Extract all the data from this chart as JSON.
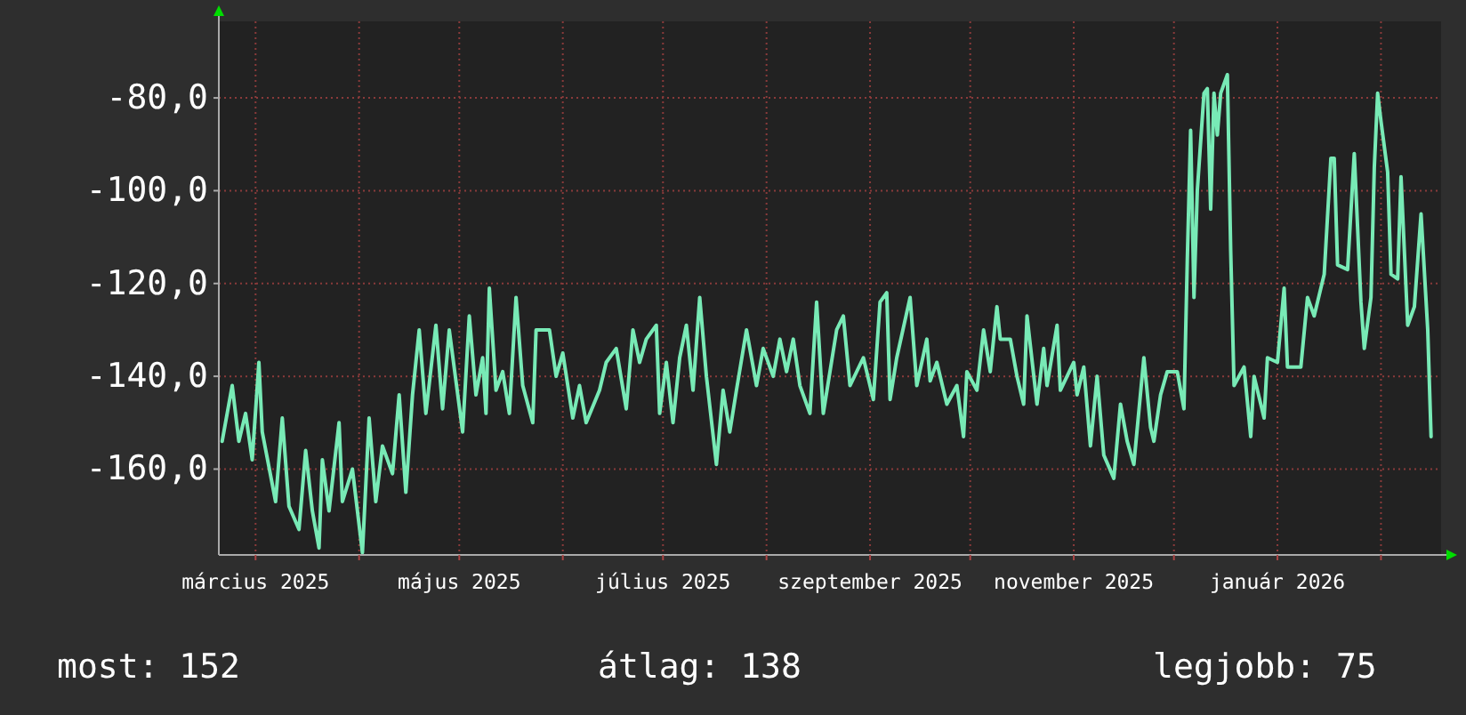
{
  "chart_data": {
    "type": "line",
    "xlim": [
      "2025-02-18",
      "2026-02-19"
    ],
    "xticks": [
      {
        "value": "2025-03-01",
        "label": "március 2025"
      },
      {
        "value": "2025-04-01",
        "label": null
      },
      {
        "value": "2025-05-01",
        "label": "május 2025"
      },
      {
        "value": "2025-06-01",
        "label": null
      },
      {
        "value": "2025-07-01",
        "label": "július 2025"
      },
      {
        "value": "2025-08-01",
        "label": null
      },
      {
        "value": "2025-09-01",
        "label": "szeptember 2025"
      },
      {
        "value": "2025-10-01",
        "label": null
      },
      {
        "value": "2025-11-01",
        "label": "november 2025"
      },
      {
        "value": "2025-12-01",
        "label": null
      },
      {
        "value": "2026-01-01",
        "label": "január 2026"
      },
      {
        "value": "2026-02-01",
        "label": null
      }
    ],
    "ylim": [
      -178.5,
      -63.5
    ],
    "yticks": [
      {
        "value": -160,
        "label": "-160,0"
      },
      {
        "value": -140,
        "label": "-140,0"
      },
      {
        "value": -120,
        "label": "-120,0"
      },
      {
        "value": -100,
        "label": "-100,0"
      },
      {
        "value": -80,
        "label": "-80,0"
      }
    ],
    "grid": true,
    "marker": "none",
    "line_style": "solid",
    "annotations": [
      "most: 152",
      "átlag: 138",
      "legjobb: 75"
    ],
    "series": [
      {
        "color": "#78eab6",
        "x": [
          "2025-02-19",
          "2025-02-22",
          "2025-02-24",
          "2025-02-26",
          "2025-02-28",
          "2025-03-02",
          "2025-03-03",
          "2025-03-07",
          "2025-03-09",
          "2025-03-11",
          "2025-03-14",
          "2025-03-16",
          "2025-03-18",
          "2025-03-20",
          "2025-03-21",
          "2025-03-23",
          "2025-03-26",
          "2025-03-27",
          "2025-03-30",
          "2025-03-31",
          "2025-04-02",
          "2025-04-04",
          "2025-04-06",
          "2025-04-08",
          "2025-04-11",
          "2025-04-13",
          "2025-04-15",
          "2025-04-17",
          "2025-04-19",
          "2025-04-21",
          "2025-04-24",
          "2025-04-26",
          "2025-04-28",
          "2025-05-02",
          "2025-05-04",
          "2025-05-06",
          "2025-05-08",
          "2025-05-09",
          "2025-05-10",
          "2025-05-12",
          "2025-05-14",
          "2025-05-16",
          "2025-05-18",
          "2025-05-20",
          "2025-05-23",
          "2025-05-24",
          "2025-05-28",
          "2025-05-30",
          "2025-06-01",
          "2025-06-04",
          "2025-06-06",
          "2025-06-08",
          "2025-06-12",
          "2025-06-14",
          "2025-06-17",
          "2025-06-20",
          "2025-06-22",
          "2025-06-24",
          "2025-06-26",
          "2025-06-29",
          "2025-06-30",
          "2025-07-02",
          "2025-07-04",
          "2025-07-06",
          "2025-07-08",
          "2025-07-10",
          "2025-07-12",
          "2025-07-14",
          "2025-07-17",
          "2025-07-19",
          "2025-07-21",
          "2025-07-23",
          "2025-07-26",
          "2025-07-29",
          "2025-07-31",
          "2025-08-03",
          "2025-08-05",
          "2025-08-07",
          "2025-08-09",
          "2025-08-11",
          "2025-08-14",
          "2025-08-16",
          "2025-08-18",
          "2025-08-22",
          "2025-08-24",
          "2025-08-26",
          "2025-08-30",
          "2025-09-02",
          "2025-09-04",
          "2025-09-06",
          "2025-09-07",
          "2025-09-09",
          "2025-09-13",
          "2025-09-15",
          "2025-09-18",
          "2025-09-19",
          "2025-09-21",
          "2025-09-24",
          "2025-09-27",
          "2025-09-29",
          "2025-09-30",
          "2025-10-03",
          "2025-10-05",
          "2025-10-07",
          "2025-10-09",
          "2025-10-10",
          "2025-10-13",
          "2025-10-15",
          "2025-10-17",
          "2025-10-18",
          "2025-10-21",
          "2025-10-23",
          "2025-10-24",
          "2025-10-27",
          "2025-10-28",
          "2025-11-01",
          "2025-11-02",
          "2025-11-04",
          "2025-11-06",
          "2025-11-08",
          "2025-11-10",
          "2025-11-13",
          "2025-11-15",
          "2025-11-17",
          "2025-11-19",
          "2025-11-22",
          "2025-11-24",
          "2025-11-25",
          "2025-11-27",
          "2025-11-29",
          "2025-12-02",
          "2025-12-04",
          "2025-12-05",
          "2025-12-06",
          "2025-12-07",
          "2025-12-08",
          "2025-12-10",
          "2025-12-11",
          "2025-12-12",
          "2025-12-13",
          "2025-12-14",
          "2025-12-15",
          "2025-12-17",
          "2025-12-18",
          "2025-12-19",
          "2025-12-22",
          "2025-12-24",
          "2025-12-25",
          "2025-12-28",
          "2025-12-29",
          "2026-01-01",
          "2026-01-03",
          "2026-01-04",
          "2026-01-08",
          "2026-01-10",
          "2026-01-12",
          "2026-01-15",
          "2026-01-17",
          "2026-01-18",
          "2026-01-19",
          "2026-01-22",
          "2026-01-24",
          "2026-01-26",
          "2026-01-27",
          "2026-01-29",
          "2026-01-30",
          "2026-01-31",
          "2026-02-01",
          "2026-02-03",
          "2026-02-04",
          "2026-02-06",
          "2026-02-07",
          "2026-02-09",
          "2026-02-11",
          "2026-02-13",
          "2026-02-15",
          "2026-02-16"
        ],
        "values": [
          -154,
          -142,
          -154,
          -148,
          -158,
          -137,
          -152,
          -167,
          -149,
          -168,
          -173,
          -156,
          -169,
          -177,
          -158,
          -169,
          -150,
          -167,
          -160,
          -166,
          -178,
          -149,
          -167,
          -155,
          -161,
          -144,
          -165,
          -144,
          -130,
          -148,
          -129,
          -147,
          -130,
          -152,
          -127,
          -144,
          -136,
          -148,
          -121,
          -143,
          -139,
          -148,
          -123,
          -142,
          -150,
          -130,
          -130,
          -140,
          -135,
          -149,
          -142,
          -150,
          -143,
          -137,
          -134,
          -147,
          -130,
          -137,
          -132,
          -129,
          -148,
          -137,
          -150,
          -136,
          -129,
          -143,
          -123,
          -140,
          -159,
          -143,
          -152,
          -143,
          -130,
          -142,
          -134,
          -140,
          -132,
          -139,
          -132,
          -142,
          -148,
          -124,
          -148,
          -130,
          -127,
          -142,
          -136,
          -145,
          -124,
          -122,
          -145,
          -136,
          -123,
          -142,
          -132,
          -141,
          -137,
          -146,
          -142,
          -153,
          -139,
          -143,
          -130,
          -139,
          -125,
          -132,
          -132,
          -140,
          -146,
          -127,
          -146,
          -134,
          -142,
          -129,
          -143,
          -137,
          -144,
          -138,
          -155,
          -140,
          -157,
          -162,
          -146,
          -154,
          -159,
          -136,
          -151,
          -154,
          -144,
          -139,
          -139,
          -147,
          -115,
          -87,
          -123,
          -100,
          -79,
          -78,
          -104,
          -79,
          -88,
          -79,
          -75,
          -113,
          -142,
          -138,
          -153,
          -140,
          -149,
          -136,
          -137,
          -121,
          -138,
          -138,
          -123,
          -127,
          -118,
          -93,
          -93,
          -116,
          -117,
          -92,
          -124,
          -134,
          -123,
          -95,
          -79,
          -85,
          -96,
          -118,
          -119,
          -97,
          -129,
          -125,
          -105,
          -130,
          -153
        ]
      }
    ]
  }
}
